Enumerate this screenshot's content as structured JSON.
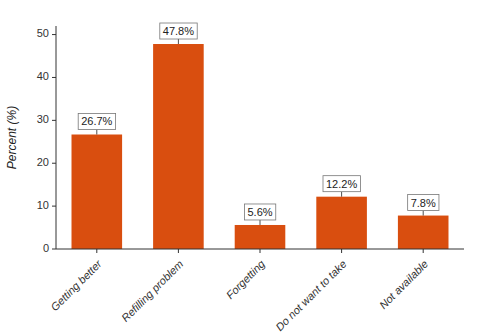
{
  "chart_data": {
    "type": "bar",
    "categories": [
      "Getting better",
      "Refilling problem",
      "Forgetting",
      "Do not want to take",
      "Not available"
    ],
    "values": [
      26.7,
      47.8,
      5.6,
      12.2,
      7.8
    ],
    "value_labels": [
      "26.7%",
      "47.8%",
      "5.6%",
      "12.2%",
      "7.8%"
    ],
    "data_labels": true,
    "color": "#D94E0F",
    "ylabel": "Percent (%)",
    "ylim": [
      0,
      52
    ],
    "yticks": [
      0,
      10,
      20,
      30,
      40,
      50
    ],
    "grid": false
  }
}
